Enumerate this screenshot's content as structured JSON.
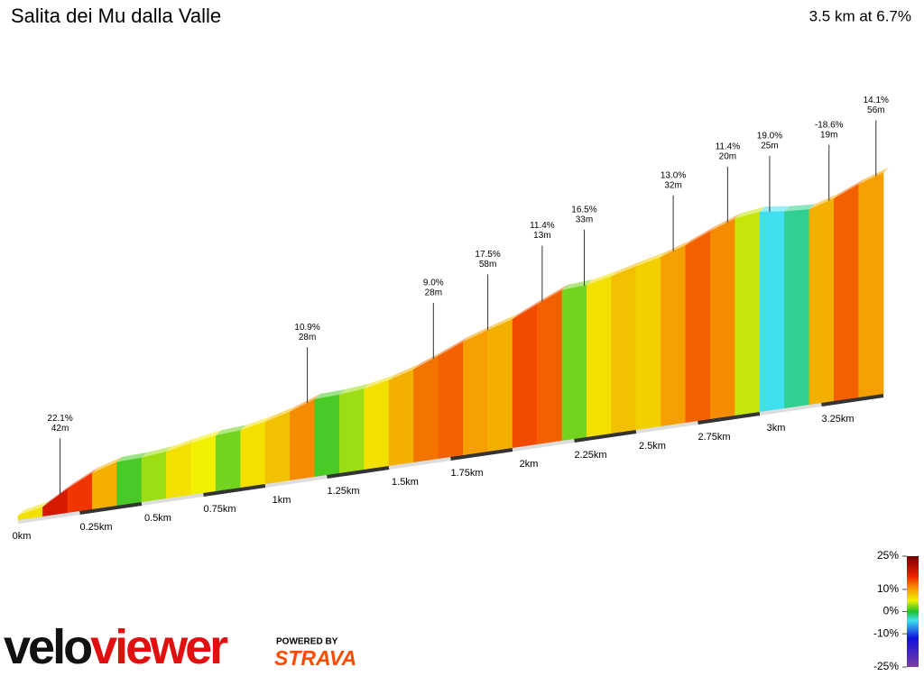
{
  "chart_data": {
    "type": "elevation-profile",
    "title": "Salita dei Mu dalla Valle",
    "subtitle": "3.5 km at 6.7%",
    "xlim": [
      0,
      3.5
    ],
    "xticks": [
      {
        "value": 0,
        "label": "0km"
      },
      {
        "value": 0.25,
        "label": "0.25km"
      },
      {
        "value": 0.5,
        "label": "0.5km"
      },
      {
        "value": 0.75,
        "label": "0.75km"
      },
      {
        "value": 1,
        "label": "1km"
      },
      {
        "value": 1.25,
        "label": "1.25km"
      },
      {
        "value": 1.5,
        "label": "1.5km"
      },
      {
        "value": 1.75,
        "label": "1.75km"
      },
      {
        "value": 2,
        "label": "2km"
      },
      {
        "value": 2.25,
        "label": "2.25km"
      },
      {
        "value": 2.5,
        "label": "2.5km"
      },
      {
        "value": 2.75,
        "label": "2.75km"
      },
      {
        "value": 3,
        "label": "3km"
      },
      {
        "value": 3.25,
        "label": "3.25km"
      }
    ],
    "x": [
      0,
      0.1,
      0.2,
      0.3,
      0.4,
      0.5,
      0.6,
      0.7,
      0.8,
      0.9,
      1,
      1.1,
      1.2,
      1.3,
      1.4,
      1.5,
      1.6,
      1.7,
      1.8,
      1.9,
      2,
      2.1,
      2.2,
      2.3,
      2.4,
      2.5,
      2.6,
      2.7,
      2.8,
      2.9,
      3,
      3.1,
      3.2,
      3.3,
      3.4
    ],
    "gradients": [
      6,
      18,
      15,
      9,
      1,
      3,
      6,
      5,
      2,
      6,
      8,
      11,
      1,
      3,
      6,
      9,
      12,
      13,
      10,
      9,
      14,
      13,
      2,
      6,
      8,
      7,
      10,
      13,
      11,
      4,
      -4,
      -2,
      9,
      13,
      10
    ],
    "annotations": [
      {
        "x": 0.17,
        "gradient": 22.1,
        "gradient_label": "22.1%",
        "length": 42,
        "length_label": "42m"
      },
      {
        "x": 1.17,
        "gradient": 10.9,
        "gradient_label": "10.9%",
        "length": 28,
        "length_label": "28m"
      },
      {
        "x": 1.68,
        "gradient": 9.0,
        "gradient_label": "9.0%",
        "length": 28,
        "length_label": "28m"
      },
      {
        "x": 1.9,
        "gradient": 17.5,
        "gradient_label": "17.5%",
        "length": 58,
        "length_label": "58m"
      },
      {
        "x": 2.12,
        "gradient": 11.4,
        "gradient_label": "11.4%",
        "length": 13,
        "length_label": "13m"
      },
      {
        "x": 2.29,
        "gradient": 16.5,
        "gradient_label": "16.5%",
        "length": 33,
        "length_label": "33m"
      },
      {
        "x": 2.65,
        "gradient": 13.0,
        "gradient_label": "13.0%",
        "length": 32,
        "length_label": "32m"
      },
      {
        "x": 2.87,
        "gradient": 11.4,
        "gradient_label": "11.4%",
        "length": 20,
        "length_label": "20m"
      },
      {
        "x": 3.04,
        "gradient": 19.0,
        "gradient_label": "19.0%",
        "length": 25,
        "length_label": "25m"
      },
      {
        "x": 3.28,
        "gradient": -18.6,
        "gradient_label": "-18.6%",
        "length": 19,
        "length_label": "19m"
      },
      {
        "x": 3.47,
        "gradient": 14.1,
        "gradient_label": "14.1%",
        "length": 56,
        "length_label": "56m"
      }
    ],
    "colorscale": {
      "range": [
        -25,
        25
      ],
      "ticks": [
        {
          "value": 25,
          "label": "25%"
        },
        {
          "value": 10,
          "label": "10%"
        },
        {
          "value": 0,
          "label": "0%"
        },
        {
          "value": -10,
          "label": "-10%"
        },
        {
          "value": -25,
          "label": "-25%"
        }
      ],
      "stops": [
        {
          "value": -25,
          "color": "#7b3fa0"
        },
        {
          "value": -12,
          "color": "#1010e0"
        },
        {
          "value": -4,
          "color": "#40e0f0"
        },
        {
          "value": 0,
          "color": "#20c030"
        },
        {
          "value": 5,
          "color": "#f0f000"
        },
        {
          "value": 10,
          "color": "#f5a000"
        },
        {
          "value": 16,
          "color": "#f02000"
        },
        {
          "value": 25,
          "color": "#700000"
        }
      ]
    },
    "branding": {
      "logo_a": "velo",
      "logo_b": "viewer",
      "powered": "POWERED BY",
      "strava": "STRAVA"
    }
  }
}
